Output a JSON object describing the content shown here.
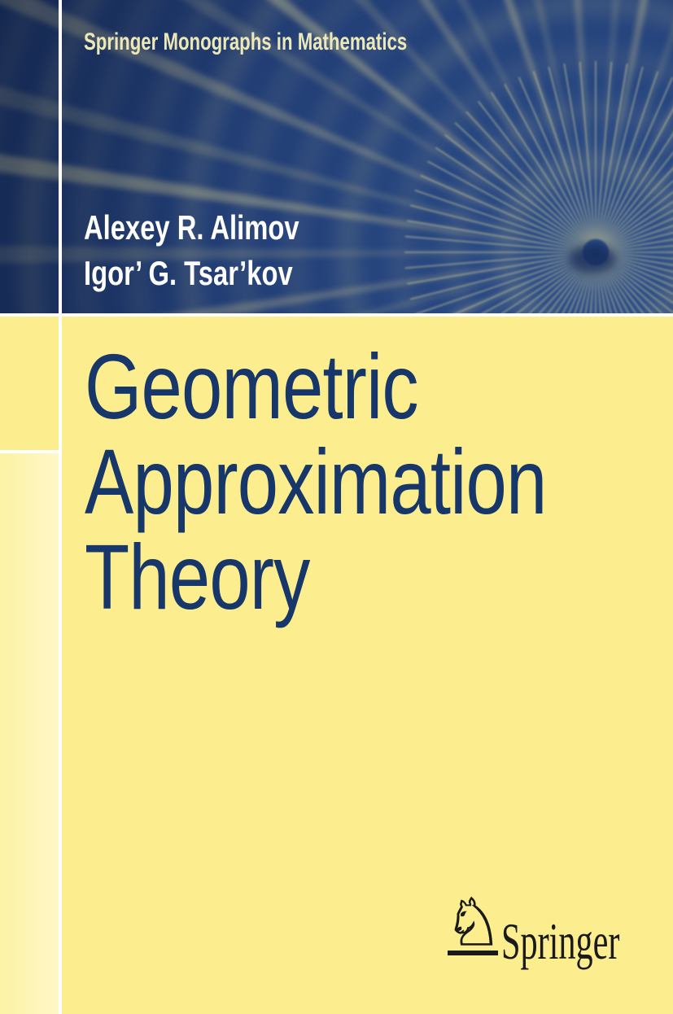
{
  "cover": {
    "series_title": "Springer Monographs in Mathematics",
    "authors": [
      "Alexey R. Alimov",
      "Igor’ G. Tsar’kov"
    ],
    "title_lines": [
      "Geometric",
      "Approximation",
      "Theory"
    ],
    "publisher": {
      "name": "Springer",
      "horse_glyph": "♘"
    },
    "colors": {
      "header_blue_light": "#2c4e8b",
      "header_blue": "#223f78",
      "header_blue_dark": "#172e5c",
      "ray_yellow": "#cfc88e",
      "ray_bright": "#ded898",
      "center_dark": "#16305f",
      "series_title_text": "#ede8b8",
      "author_text": "#ffffff",
      "title_text": "#17376b",
      "cover_yellow": "#fcee8e",
      "strip_yellow_light": "#fbf2a4",
      "strip_yellow_lighter": "#fff8c6",
      "divider_white": "#ffffff",
      "logo_black": "#1a1a1a"
    }
  }
}
